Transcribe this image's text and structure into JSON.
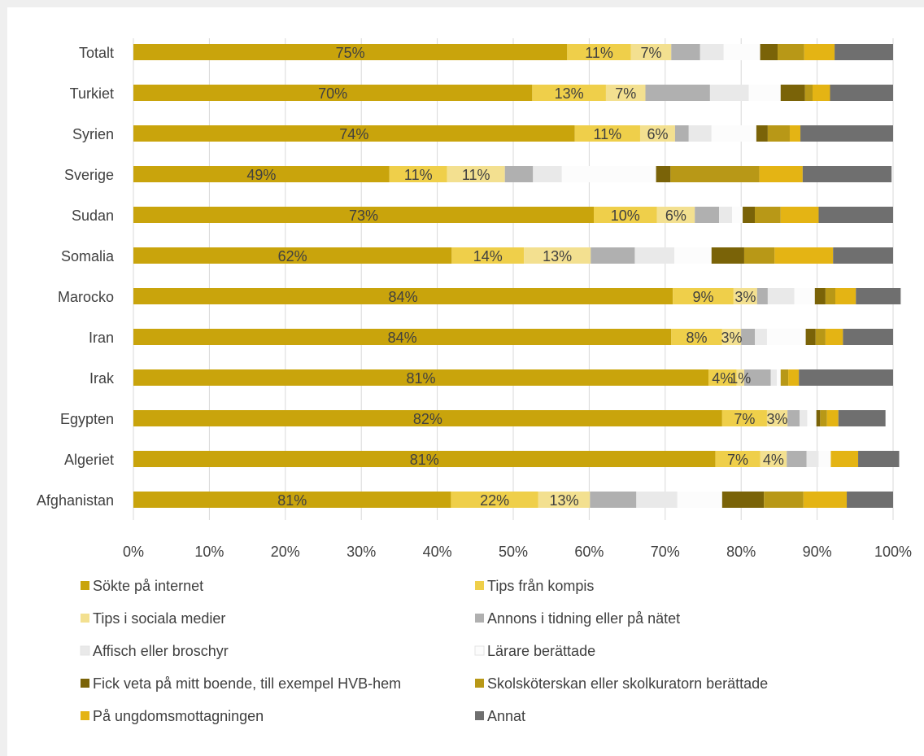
{
  "chart_data": {
    "type": "bar",
    "orientation": "horizontal",
    "stacked": true,
    "normalized": true,
    "title": "",
    "xlabel": "",
    "ylabel": "",
    "xlim": [
      0,
      100
    ],
    "x_ticks": [
      "0%",
      "10%",
      "20%",
      "30%",
      "40%",
      "50%",
      "60%",
      "70%",
      "80%",
      "90%",
      "100%"
    ],
    "grid": "vertical",
    "legend_position": "bottom",
    "categories": [
      "Totalt",
      "Turkiet",
      "Syrien",
      "Sverige",
      "Sudan",
      "Somalia",
      "Marocko",
      "Iran",
      "Irak",
      "Egypten",
      "Algeriet",
      "Afghanistan"
    ],
    "series": [
      {
        "name": "Sökte på internet",
        "color": "#c9a40c",
        "values": [
          57.1,
          52.5,
          58.1,
          33.7,
          60.6,
          41.9,
          71.0,
          70.8,
          75.7,
          77.5,
          76.6,
          41.8
        ],
        "labels": [
          "75%",
          "70%",
          "74%",
          "49%",
          "73%",
          "62%",
          "84%",
          "84%",
          "81%",
          "82%",
          "81%",
          "81%"
        ]
      },
      {
        "name": "Tips från kompis",
        "color": "#efcf4a",
        "values": [
          8.4,
          9.7,
          8.6,
          7.6,
          8.3,
          9.5,
          8.0,
          6.7,
          3.7,
          5.9,
          5.9,
          11.5
        ],
        "labels": [
          "11%",
          "13%",
          "11%",
          "11%",
          "10%",
          "14%",
          "9%",
          "8%",
          "4%",
          "7%",
          "7%",
          "22%"
        ]
      },
      {
        "name": "Tips i sociala medier",
        "color": "#f3e090",
        "values": [
          5.3,
          5.2,
          4.6,
          7.6,
          5.0,
          8.8,
          3.1,
          2.5,
          1.0,
          2.7,
          3.5,
          6.8
        ],
        "labels": [
          "7%",
          "7%",
          "6%",
          "11%",
          "6%",
          "13%",
          "3%",
          "3%",
          "1%",
          "3%",
          "4%",
          "13%"
        ]
      },
      {
        "name": "Annons i tidning eller på nätet",
        "color": "#b0b0b0",
        "values": [
          3.8,
          8.5,
          1.8,
          3.7,
          3.2,
          5.8,
          1.4,
          1.8,
          3.5,
          1.6,
          2.6,
          6.1
        ]
      },
      {
        "name": "Affisch eller broschyr",
        "color": "#e9e9e9",
        "values": [
          3.1,
          5.1,
          3.0,
          3.8,
          1.7,
          5.2,
          3.5,
          1.6,
          0.8,
          1.0,
          1.6,
          5.4
        ]
      },
      {
        "name": "Lärare berättade",
        "color": "#fcfcfc",
        "values": [
          4.8,
          4.2,
          5.9,
          12.4,
          1.4,
          4.9,
          2.7,
          5.1,
          0.5,
          1.2,
          1.6,
          5.9
        ]
      },
      {
        "name": "Fick veta på mitt boende, till exempel HVB-hem",
        "color": "#7a6308",
        "values": [
          2.3,
          3.2,
          1.5,
          1.9,
          1.6,
          4.3,
          1.4,
          1.3,
          0.0,
          0.5,
          0.0,
          5.5
        ]
      },
      {
        "name": "Skolsköterskan eller skolkuratorn berättade",
        "color": "#b89817",
        "values": [
          3.5,
          1.0,
          2.9,
          11.7,
          3.4,
          4.0,
          1.3,
          1.3,
          1.0,
          0.9,
          0.0,
          5.2
        ]
      },
      {
        "name": "På ungdomsmottagningen",
        "color": "#e4b414",
        "values": [
          4.0,
          2.3,
          1.4,
          5.7,
          5.0,
          7.7,
          2.7,
          2.3,
          1.4,
          1.5,
          3.6,
          5.7
        ]
      },
      {
        "name": "Annat",
        "color": "#6f6f6f",
        "values": [
          7.7,
          8.3,
          12.2,
          11.7,
          9.8,
          7.9,
          5.9,
          6.6,
          12.4,
          6.2,
          5.4,
          6.1
        ]
      }
    ]
  }
}
